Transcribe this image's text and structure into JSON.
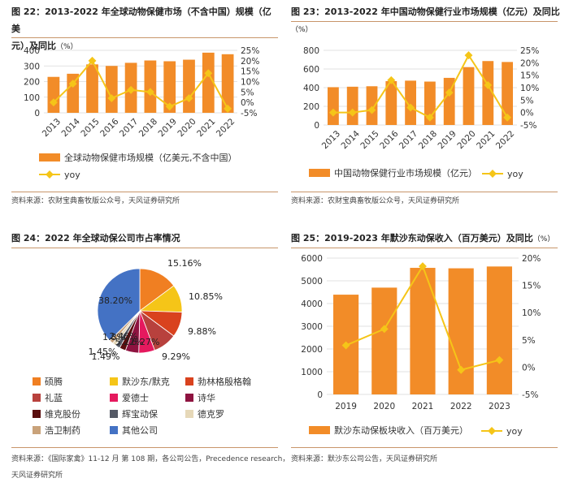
{
  "panels": {
    "p22": {
      "title_line1": "图 22：2013-2022 年全球动物保健市场（不含中国）规模（亿美",
      "title_line2": "元）及同比",
      "title_pct": "（%）",
      "source": "资料来源：农财宝典畜牧版公众号，天风证券研究所"
    },
    "p23": {
      "title": "图 23：2013-2022 年中国动物保健行业市场规模（亿元）及同比",
      "title_pct": "（%）",
      "source": "资料来源：农财宝典畜牧版公众号，天风证券研究所"
    },
    "p24": {
      "title": "图 24：2022 年全球动保公司市占率情况",
      "source_line1": "资料来源：《国际家禽》11-12 月 第 108 期，各公司公告，Precedence research，",
      "source_line2": "天风证券研究所"
    },
    "p25": {
      "title": "图 25：2019-2023 年默沙东动保收入（百万美元）及同比",
      "title_pct": "（%）",
      "source": "资料来源：默沙东公司公告，天风证券研究所"
    }
  },
  "colors": {
    "bar": "#f28c28",
    "line": "#f5c518",
    "rule": "#c8956a"
  },
  "chart_data": [
    {
      "id": "p22",
      "type": "bar",
      "categories": [
        "2013",
        "2014",
        "2015",
        "2016",
        "2017",
        "2018",
        "2019",
        "2020",
        "2021",
        "2022"
      ],
      "series": [
        {
          "name": "全球动物保健市场规模（亿美元,不含中国）",
          "type": "bar",
          "axis": "left",
          "values": [
            230,
            250,
            310,
            300,
            320,
            335,
            330,
            340,
            385,
            375
          ]
        },
        {
          "name": "yoy",
          "type": "line",
          "axis": "right",
          "values": [
            0,
            9,
            20,
            2,
            6,
            5,
            -2,
            2,
            14,
            -3
          ]
        }
      ],
      "yleft": {
        "min": 0,
        "max": 400,
        "ticks": [
          "0",
          "100",
          "200",
          "300",
          "400"
        ],
        "tickValues": [
          0,
          100,
          200,
          300,
          400
        ]
      },
      "yright": {
        "min": -5,
        "max": 25,
        "ticks": [
          "-5%",
          "0%",
          "5%",
          "10%",
          "15%",
          "20%",
          "25%"
        ],
        "tickValues": [
          -5,
          0,
          5,
          10,
          15,
          20,
          25
        ]
      },
      "legend": [
        "全球动物保健市场规模（亿美元,不含中国）",
        "yoy"
      ]
    },
    {
      "id": "p23",
      "type": "bar",
      "categories": [
        "2013",
        "2014",
        "2015",
        "2016",
        "2017",
        "2018",
        "2019",
        "2020",
        "2021",
        "2022"
      ],
      "series": [
        {
          "name": "中国动物保健行业市场规模（亿元）",
          "type": "bar",
          "axis": "left",
          "values": [
            405,
            410,
            415,
            470,
            475,
            465,
            505,
            620,
            685,
            675
          ]
        },
        {
          "name": "yoy",
          "type": "line",
          "axis": "right",
          "values": [
            0,
            0,
            1,
            13,
            2,
            -2,
            8,
            23,
            11,
            -2
          ]
        }
      ],
      "yleft": {
        "min": 0,
        "max": 800,
        "ticks": [
          "0",
          "200",
          "400",
          "600",
          "800"
        ],
        "tickValues": [
          0,
          200,
          400,
          600,
          800
        ]
      },
      "yright": {
        "min": -5,
        "max": 25,
        "ticks": [
          "-5%",
          "0%",
          "5%",
          "10%",
          "15%",
          "20%",
          "25%"
        ],
        "tickValues": [
          -5,
          0,
          5,
          10,
          15,
          20,
          25
        ]
      },
      "legend": [
        "中国动物保健行业市场规模（亿元）",
        "yoy"
      ]
    },
    {
      "id": "p24",
      "type": "pie",
      "slices": [
        {
          "name": "硕腾",
          "value": 15.16,
          "label": "15.16%",
          "color": "#f07f22"
        },
        {
          "name": "默沙东/默克",
          "value": 10.85,
          "label": "10.85%",
          "color": "#f5c518"
        },
        {
          "name": "勃林格殷格翰",
          "value": 9.88,
          "label": "9.88%",
          "color": "#d9421e"
        },
        {
          "name": "礼蓝",
          "value": 9.29,
          "label": "9.29%",
          "color": "#b8413d"
        },
        {
          "name": "爱德士",
          "value": 6.27,
          "label": "6.27%",
          "color": "#e5195e"
        },
        {
          "name": "诗华",
          "value": 5.22,
          "label": "5.22%",
          "color": "#8e1340"
        },
        {
          "name": "维克股份",
          "value": 2.46,
          "label": "2.46%",
          "color": "#5a0e0e"
        },
        {
          "name": "辉宝动保",
          "value": 1.8,
          "label": "1.8%",
          "color": "#555a66"
        },
        {
          "name": "德克罗",
          "value": 1.45,
          "label": "1.45%",
          "color": "#e6d8b8"
        },
        {
          "name": "浩卫制药",
          "value": 1.49,
          "label": "1.49%",
          "color": "#c9a27a"
        },
        {
          "name": "其他公司",
          "value": 38.2,
          "label": "38.20%",
          "color": "#4472c4"
        }
      ]
    },
    {
      "id": "p25",
      "type": "bar",
      "categories": [
        "2019",
        "2020",
        "2021",
        "2022",
        "2023"
      ],
      "series": [
        {
          "name": "默沙东动保板块收入（百万美元）",
          "type": "bar",
          "axis": "left",
          "values": [
            4390,
            4700,
            5570,
            5550,
            5630
          ]
        },
        {
          "name": "yoy",
          "type": "line",
          "axis": "right",
          "values": [
            4,
            7,
            18.5,
            -0.5,
            1.3
          ]
        }
      ],
      "yleft": {
        "min": 0,
        "max": 6000,
        "ticks": [
          "0",
          "1000",
          "2000",
          "3000",
          "4000",
          "5000",
          "6000"
        ],
        "tickValues": [
          0,
          1000,
          2000,
          3000,
          4000,
          5000,
          6000
        ]
      },
      "yright": {
        "min": -5,
        "max": 20,
        "ticks": [
          "-5%",
          "0%",
          "5%",
          "10%",
          "15%",
          "20%"
        ],
        "tickValues": [
          -5,
          0,
          5,
          10,
          15,
          20
        ]
      },
      "legend": [
        "默沙东动保板块收入（百万美元）",
        "yoy"
      ]
    }
  ]
}
